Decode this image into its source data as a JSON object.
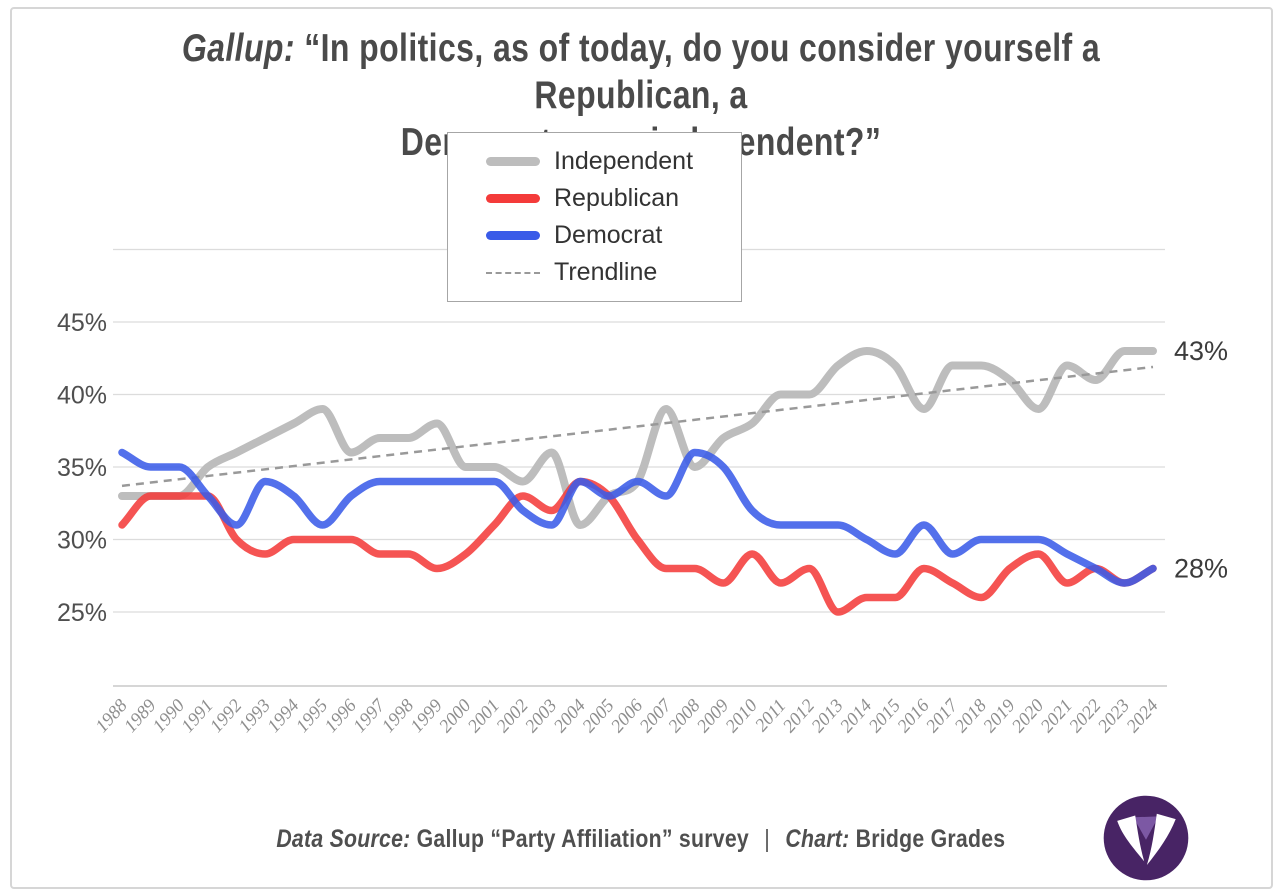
{
  "title": {
    "brand": "Gallup:",
    "line1_rest": " “In politics, as of today, do you consider yourself a Republican, a",
    "line2": "Democrat or an independent?”"
  },
  "legend": {
    "items": [
      {
        "label": "Independent",
        "color": "#bdbdbd",
        "style": "solid"
      },
      {
        "label": "Republican",
        "color": "#f43b3a",
        "style": "solid"
      },
      {
        "label": "Democrat",
        "color": "#3a5be8",
        "style": "solid"
      },
      {
        "label": "Trendline",
        "color": "#999999",
        "style": "dashed"
      }
    ]
  },
  "footer": {
    "source_label": "Data Source:",
    "source_text": " Gallup “Party Affiliation” survey",
    "separator": "|",
    "chart_label": "Chart:",
    "chart_text": " Bridge Grades",
    "logo": "bridge-grades-logo"
  },
  "colors": {
    "independent": "#bdbdbd",
    "republican": "#f43b3a",
    "democrat": "#3a5be8",
    "trendline": "#999999",
    "grid": "#dcdcdc",
    "logo_purple": "#482465",
    "logo_violet": "#7c58a4"
  },
  "chart_data": {
    "type": "line",
    "title": "Gallup: “In politics, as of today, do you consider yourself a Republican, a Democrat or an independent?”",
    "x": [
      1988,
      1989,
      1990,
      1991,
      1992,
      1993,
      1994,
      1995,
      1996,
      1997,
      1998,
      1999,
      2000,
      2001,
      2002,
      2003,
      2004,
      2005,
      2006,
      2007,
      2008,
      2009,
      2010,
      2011,
      2012,
      2013,
      2014,
      2015,
      2016,
      2017,
      2018,
      2019,
      2020,
      2021,
      2022,
      2023,
      2024
    ],
    "series": [
      {
        "name": "Independent",
        "color": "#bdbdbd",
        "values": [
          33,
          33,
          33,
          35,
          36,
          37,
          38,
          39,
          36,
          37,
          37,
          38,
          35,
          35,
          34,
          36,
          31,
          33,
          34,
          39,
          35,
          37,
          38,
          40,
          40,
          42,
          43,
          42,
          39,
          42,
          42,
          41,
          39,
          42,
          41,
          43,
          43
        ]
      },
      {
        "name": "Republican",
        "color": "#f43b3a",
        "values": [
          31,
          33,
          33,
          33,
          30,
          29,
          30,
          30,
          30,
          29,
          29,
          28,
          29,
          31,
          33,
          32,
          34,
          33,
          30,
          28,
          28,
          27,
          29,
          27,
          28,
          25,
          26,
          26,
          28,
          27,
          26,
          28,
          29,
          27,
          28,
          27,
          28
        ]
      },
      {
        "name": "Democrat",
        "color": "#3a5be8",
        "values": [
          36,
          35,
          35,
          33,
          31,
          34,
          33,
          31,
          33,
          34,
          34,
          34,
          34,
          34,
          32,
          31,
          34,
          33,
          34,
          33,
          36,
          35,
          32,
          31,
          31,
          31,
          30,
          29,
          31,
          29,
          30,
          30,
          30,
          29,
          28,
          27,
          28
        ]
      }
    ],
    "trendline": {
      "label": "Trendline",
      "style": "dashed",
      "color": "#999999",
      "start_value": 33.7,
      "end_value": 41.9
    },
    "end_labels": [
      "43%",
      "28%"
    ],
    "y_ticks": [
      "45%",
      "40%",
      "35%",
      "30%",
      "25%"
    ],
    "y_tick_values": [
      45,
      40,
      35,
      30,
      25
    ],
    "ylim": [
      20,
      50
    ],
    "grid": "horizontal",
    "legend_position": "top-center",
    "xlabel": "",
    "ylabel": ""
  }
}
